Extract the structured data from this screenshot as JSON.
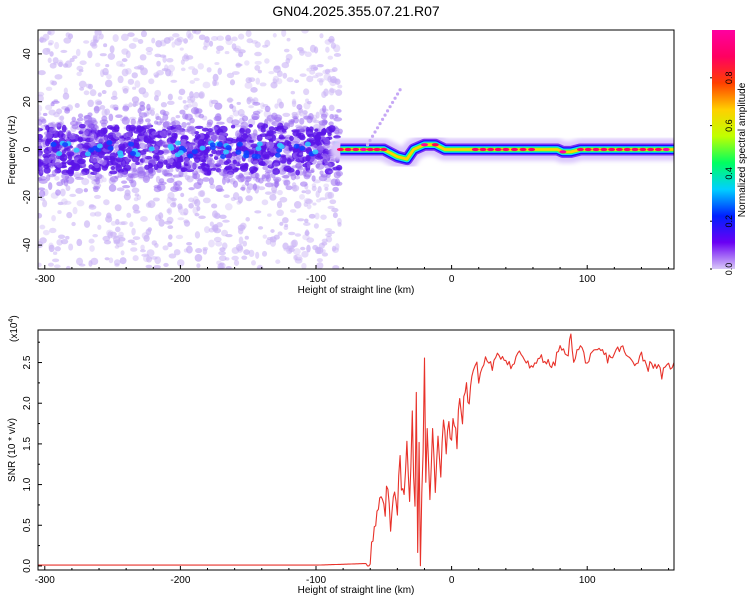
{
  "title": "GN04.2025.355.07.21.R07",
  "chart_data": [
    {
      "type": "heatmap",
      "xlabel": "Height of straight line (km)",
      "ylabel": "Frequency (Hz)",
      "xlim": [
        -305,
        164
      ],
      "ylim": [
        -50,
        50
      ],
      "x_ticks": [
        "-300",
        "-200",
        "-100",
        "0",
        "100"
      ],
      "x_tick_values": [
        -300,
        -200,
        -100,
        0,
        100
      ],
      "y_ticks": [
        "-40",
        "-20",
        "0",
        "20",
        "40"
      ],
      "y_tick_values": [
        -40,
        -20,
        0,
        20,
        40
      ],
      "colorbar": {
        "label": "Normalized spectral amplitude",
        "range": [
          0,
          1
        ],
        "ticks": [
          "0.0",
          "0.2",
          "0.4",
          "0.6",
          "0.8"
        ],
        "tick_values": [
          0.0,
          0.2,
          0.4,
          0.6,
          0.8
        ],
        "colors": [
          "#d8c8f8",
          "#6a00f4",
          "#0020ff",
          "#00d0ff",
          "#00ff60",
          "#c0ff00",
          "#ffd000",
          "#ff4000",
          "#ff0060",
          "#ff00a0"
        ]
      },
      "noise_region": {
        "x_from": -305,
        "x_to": -82,
        "band_freq": [
          -15,
          15
        ],
        "core_amplitude": 0.2
      },
      "signal_ridge": {
        "points": [
          {
            "x": -82,
            "f": 0,
            "a": 0.85
          },
          {
            "x": -65,
            "f": 0,
            "a": 0.9
          },
          {
            "x": -50,
            "f": 0,
            "a": 0.85
          },
          {
            "x": -40,
            "f": -3,
            "a": 0.75
          },
          {
            "x": -33,
            "f": -4,
            "a": 0.8
          },
          {
            "x": -28,
            "f": 0,
            "a": 0.8
          },
          {
            "x": -20,
            "f": 2,
            "a": 0.95
          },
          {
            "x": -12,
            "f": 2,
            "a": 0.85
          },
          {
            "x": -5,
            "f": 0,
            "a": 0.8
          },
          {
            "x": 40,
            "f": 0,
            "a": 0.85
          },
          {
            "x": 78,
            "f": 0,
            "a": 0.8
          },
          {
            "x": 82,
            "f": -1,
            "a": 0.95
          },
          {
            "x": 88,
            "f": -1,
            "a": 0.8
          },
          {
            "x": 95,
            "f": 0,
            "a": 0.85
          },
          {
            "x": 164,
            "f": 0,
            "a": 0.9
          }
        ],
        "faint_branch": [
          {
            "x": -62,
            "f": 2
          },
          {
            "x": -38,
            "f": 25
          }
        ]
      }
    },
    {
      "type": "line",
      "xlabel": "Height of straight line (km)",
      "ylabel": "SNR (10 * v/v)",
      "y_multiplier": "(x10",
      "y_multiplier_exp": "4",
      "xlim": [
        -305,
        164
      ],
      "ylim": [
        -0.05,
        2.9
      ],
      "x_ticks": [
        "-300",
        "-200",
        "-100",
        "0",
        "100"
      ],
      "x_tick_values": [
        -300,
        -200,
        -100,
        0,
        100
      ],
      "y_ticks": [
        "0.0",
        "0.5",
        "1.0",
        "1.5",
        "2.0",
        "2.5"
      ],
      "y_tick_values": [
        0.0,
        0.5,
        1.0,
        1.5,
        2.0,
        2.5
      ],
      "series": [
        {
          "color": "#e8322a",
          "x": [
            -305,
            -100,
            -62,
            -60,
            -58,
            -55,
            -52,
            -50,
            -47,
            -45,
            -42,
            -40,
            -38,
            -35,
            -33,
            -31,
            -29,
            -27,
            -26,
            -25,
            -24,
            -23,
            -22,
            -21,
            -20,
            -19,
            -18,
            -16,
            -14,
            -12,
            -10,
            -8,
            -6,
            -4,
            -2,
            0,
            2,
            4,
            6,
            8,
            10,
            13,
            16,
            20,
            25,
            30,
            35,
            40,
            45,
            50,
            55,
            60,
            65,
            70,
            75,
            80,
            85,
            88,
            90,
            95,
            100,
            105,
            110,
            115,
            120,
            125,
            130,
            135,
            140,
            145,
            150,
            155,
            160,
            164
          ],
          "values": [
            0.01,
            0.01,
            0.03,
            0.15,
            0.3,
            0.55,
            0.85,
            0.6,
            0.95,
            0.55,
            1.05,
            0.7,
            1.25,
            0.8,
            1.45,
            0.9,
            1.85,
            0.6,
            2.05,
            0.3,
            1.5,
            0.1,
            0.9,
            1.5,
            2.55,
            1.0,
            1.6,
            0.75,
            1.75,
            1.0,
            1.65,
            1.2,
            1.8,
            1.35,
            1.75,
            1.55,
            1.75,
            1.6,
            1.95,
            1.9,
            2.15,
            2.1,
            2.45,
            2.3,
            2.55,
            2.45,
            2.6,
            2.55,
            2.45,
            2.65,
            2.5,
            2.4,
            2.6,
            2.5,
            2.45,
            2.7,
            2.55,
            2.82,
            2.55,
            2.7,
            2.5,
            2.6,
            2.65,
            2.55,
            2.6,
            2.7,
            2.55,
            2.5,
            2.6,
            2.45,
            2.5,
            2.35,
            2.45,
            2.5
          ]
        }
      ]
    }
  ]
}
